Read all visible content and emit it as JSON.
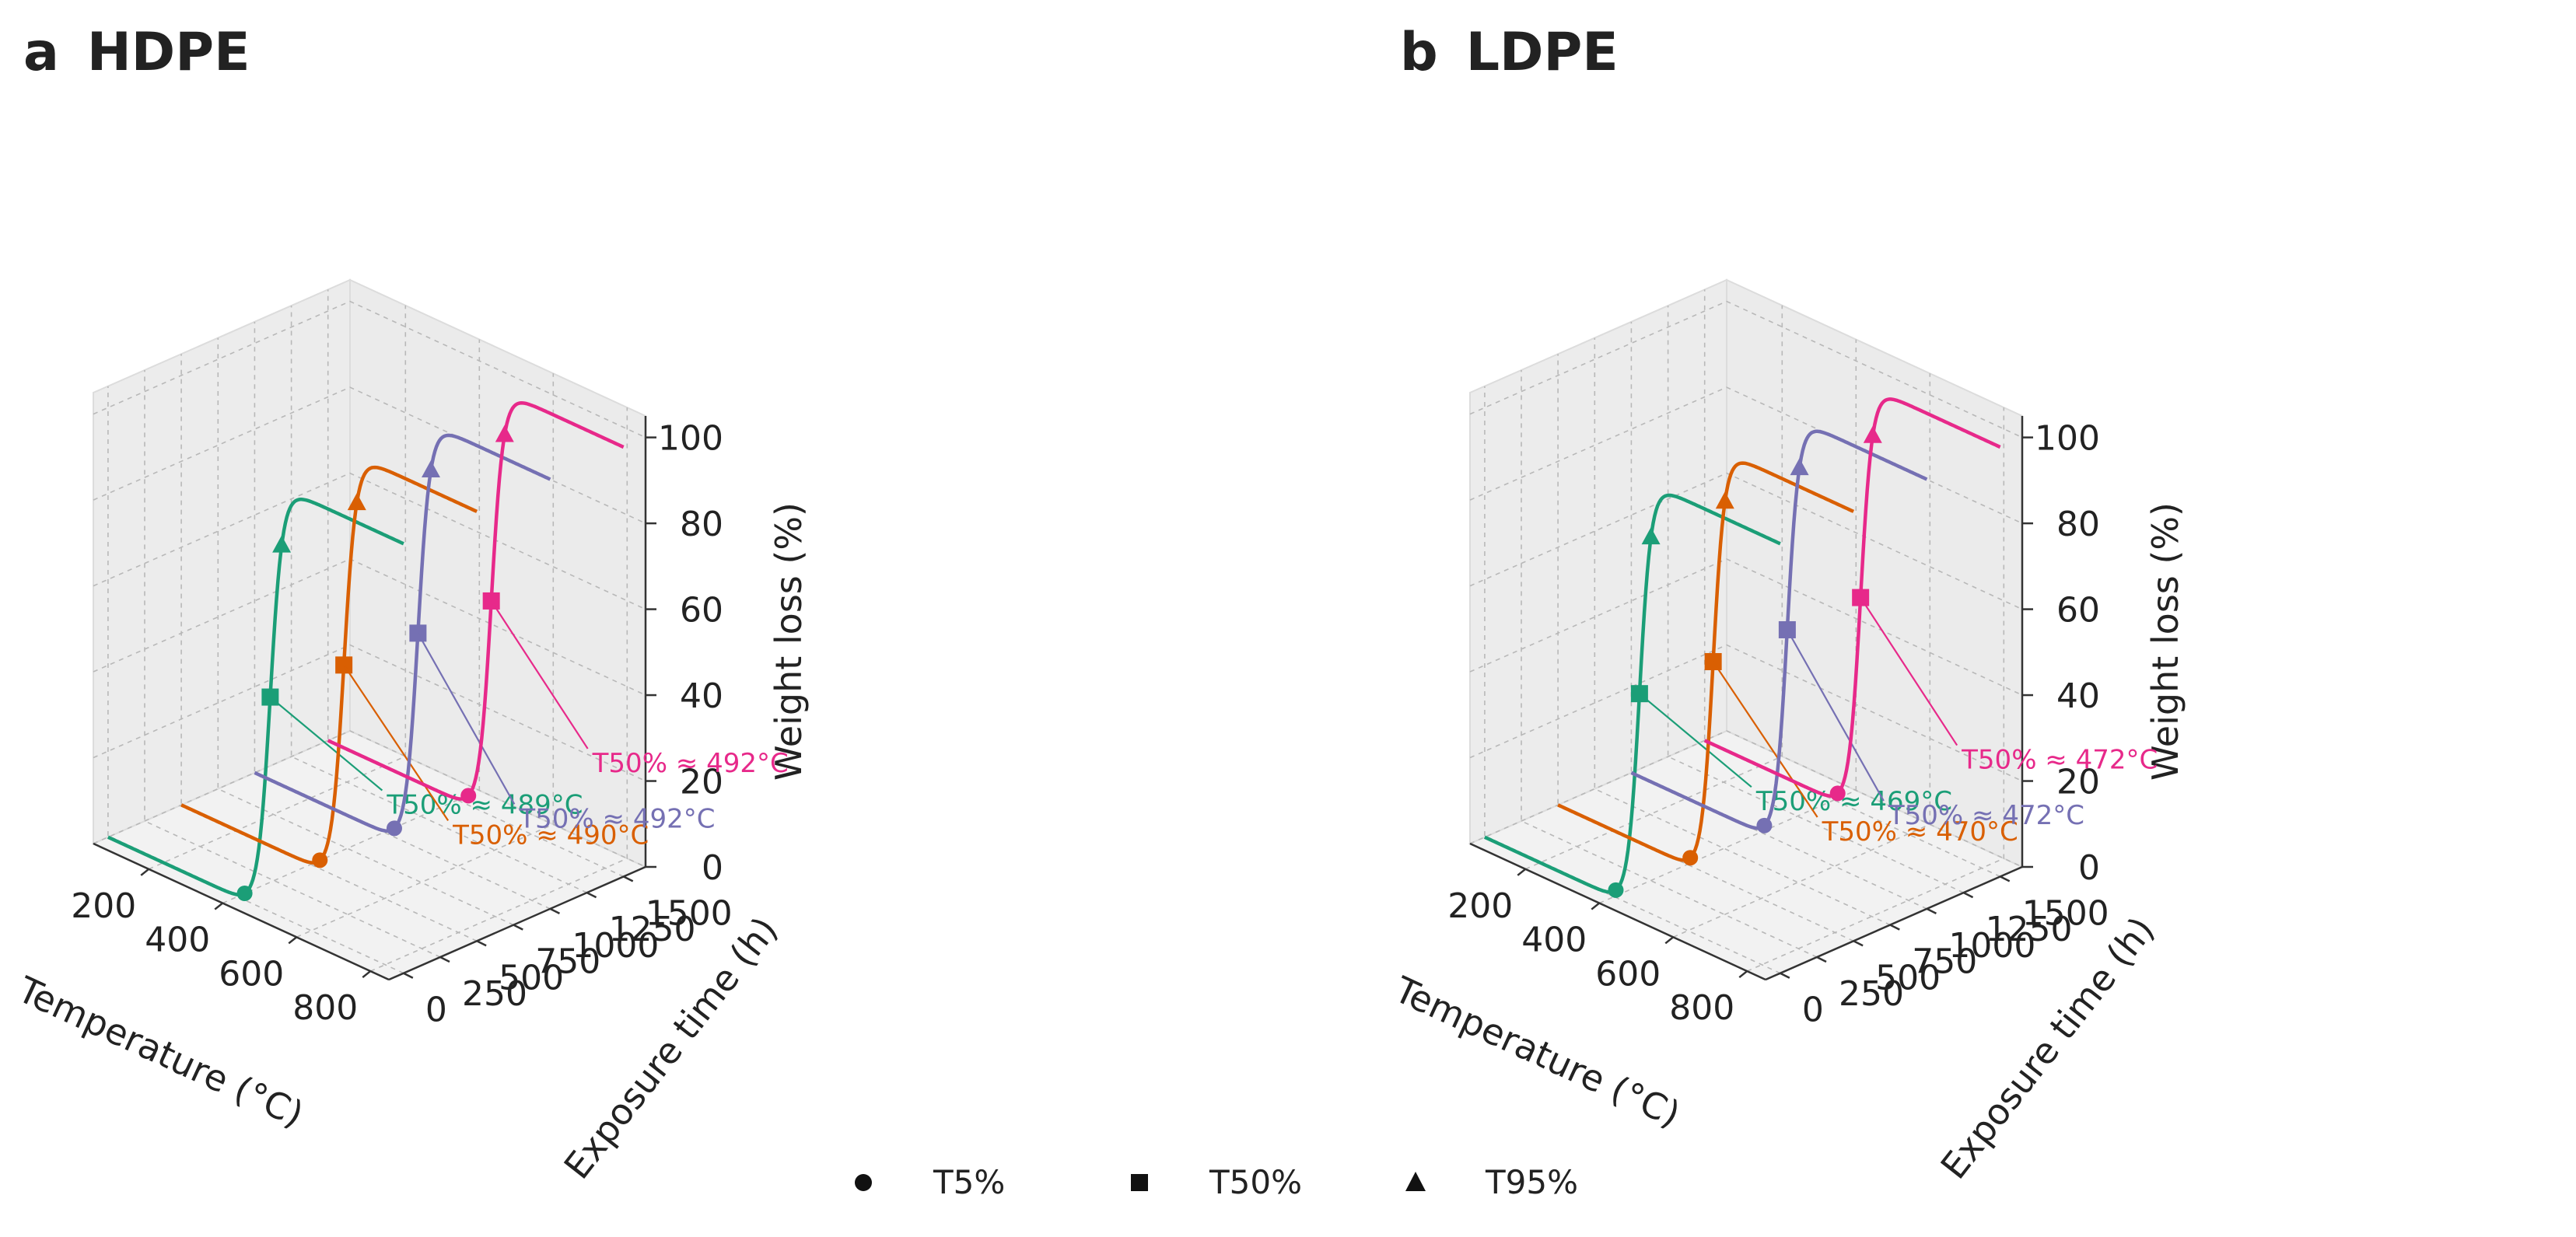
{
  "chart_data": [
    {
      "panel_letter": "a",
      "panel_name": "HDPE",
      "type": "line3d",
      "xlabel": "Temperature (°C)",
      "ylabel": "Exposure time (h)",
      "zlabel": "Weight loss (%)",
      "xticks": [
        "200",
        "400",
        "600",
        "800"
      ],
      "yticks": [
        "0",
        "250",
        "500",
        "750",
        "1000",
        "1250",
        "1500"
      ],
      "zticks": [
        "0",
        "20",
        "40",
        "60",
        "80",
        "100"
      ],
      "xlim": [
        50,
        850
      ],
      "ylim": [
        -100,
        1650
      ],
      "zlim": [
        0,
        105
      ],
      "series": [
        {
          "exposure_h": 0,
          "color": "#1b9e77",
          "T5": 420,
          "T50": 489,
          "T95": 520,
          "annotation": "T50% ≈ 489°C"
        },
        {
          "exposure_h": 500,
          "color": "#d95f02",
          "T5": 425,
          "T50": 490,
          "T95": 525,
          "annotation": "T50% ≈ 490°C"
        },
        {
          "exposure_h": 1000,
          "color": "#7570b3",
          "T5": 428,
          "T50": 492,
          "T95": 527,
          "annotation": "T50% ≈ 492°C"
        },
        {
          "exposure_h": 1500,
          "color": "#e7298a",
          "T5": 430,
          "T50": 492,
          "T95": 528,
          "annotation": "T50% ≈ 492°C"
        }
      ],
      "grid": true
    },
    {
      "panel_letter": "b",
      "panel_name": "LDPE",
      "type": "line3d",
      "xlabel": "Temperature (°C)",
      "ylabel": "Exposure time (h)",
      "zlabel": "Weight loss (%)",
      "xticks": [
        "200",
        "400",
        "600",
        "800"
      ],
      "yticks": [
        "0",
        "250",
        "500",
        "750",
        "1000",
        "1250",
        "1500"
      ],
      "zticks": [
        "0",
        "20",
        "40",
        "60",
        "80",
        "100"
      ],
      "xlim": [
        50,
        850
      ],
      "ylim": [
        -100,
        1650
      ],
      "zlim": [
        0,
        105
      ],
      "series": [
        {
          "exposure_h": 0,
          "color": "#1b9e77",
          "T5": 405,
          "T50": 469,
          "T95": 500,
          "annotation": "T50% ≈ 469°C"
        },
        {
          "exposure_h": 500,
          "color": "#d95f02",
          "T5": 408,
          "T50": 470,
          "T95": 502,
          "annotation": "T50% ≈ 470°C"
        },
        {
          "exposure_h": 1000,
          "color": "#7570b3",
          "T5": 410,
          "T50": 472,
          "T95": 505,
          "annotation": "T50% ≈ 472°C"
        },
        {
          "exposure_h": 1500,
          "color": "#e7298a",
          "T5": 410,
          "T50": 472,
          "T95": 505,
          "annotation": "T50% ≈ 472°C"
        }
      ],
      "grid": true
    }
  ],
  "legend": {
    "placement": "bottom-center",
    "items": [
      {
        "marker": "circle",
        "label": "T5%"
      },
      {
        "marker": "square",
        "label": "T50%"
      },
      {
        "marker": "triangle",
        "label": "T95%"
      }
    ]
  }
}
